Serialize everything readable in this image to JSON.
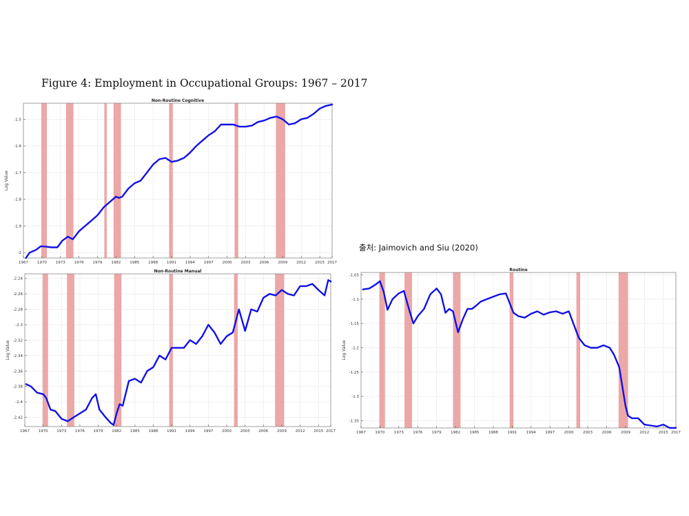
{
  "figure_title": "Figure 4: Employment in Occupational Groups: 1967 – 2017",
  "source": "출처: Jaimovich and Siu (2020)",
  "colors": {
    "line": "#1010e8",
    "recession": "#eca7a7",
    "grid": "#e6e6e6",
    "axis": "#888888"
  },
  "chart_data": [
    {
      "type": "line",
      "title": "Non-Routine Cognitive",
      "xlabel": "",
      "ylabel": "Log Value",
      "xlim": [
        1967,
        2017
      ],
      "ylim": [
        -2.02,
        -1.44
      ],
      "x_ticks": [
        1967,
        1970,
        1973,
        1976,
        1979,
        1982,
        1985,
        1988,
        1991,
        1994,
        1997,
        2000,
        2003,
        2006,
        2009,
        2012,
        2015,
        2017
      ],
      "y_ticks": [
        -2,
        -1.9,
        -1.8,
        -1.7,
        -1.6,
        -1.5
      ],
      "y_tick_labels": [
        "-2",
        "-1.9",
        "-1.8",
        "-1.7",
        "-1.6",
        "-1.5"
      ],
      "grid": true,
      "recessions": [
        [
          1969.9,
          1970.8
        ],
        [
          1973.9,
          1975.1
        ],
        [
          1980.1,
          1980.5
        ],
        [
          1981.6,
          1982.8
        ],
        [
          1990.6,
          1991.2
        ],
        [
          2001.2,
          2001.8
        ],
        [
          2007.9,
          2009.4
        ]
      ],
      "series": [
        {
          "x": [
            1967.4,
            1968,
            1969,
            1969.8,
            1970.5,
            1971.5,
            1972.5,
            1973.3,
            1974.2,
            1975,
            1976,
            1977,
            1978,
            1979,
            1980,
            1981,
            1982,
            1982.5,
            1983,
            1984,
            1985,
            1986,
            1987,
            1988,
            1989,
            1990,
            1991,
            1992,
            1993,
            1994,
            1995,
            1996,
            1997,
            1998,
            1999,
            2000,
            2001,
            2002,
            2003,
            2004,
            2005,
            2006,
            2007,
            2008,
            2009,
            2010,
            2011,
            2012,
            2013,
            2014,
            2015,
            2016,
            2017
          ],
          "y": [
            -2.02,
            -2.0,
            -1.99,
            -1.976,
            -1.977,
            -1.98,
            -1.98,
            -1.955,
            -1.94,
            -1.95,
            -1.92,
            -1.9,
            -1.88,
            -1.86,
            -1.83,
            -1.81,
            -1.79,
            -1.795,
            -1.79,
            -1.76,
            -1.74,
            -1.73,
            -1.7,
            -1.67,
            -1.65,
            -1.645,
            -1.66,
            -1.655,
            -1.645,
            -1.625,
            -1.6,
            -1.58,
            -1.56,
            -1.545,
            -1.52,
            -1.52,
            -1.52,
            -1.528,
            -1.528,
            -1.524,
            -1.51,
            -1.505,
            -1.495,
            -1.49,
            -1.5,
            -1.52,
            -1.515,
            -1.5,
            -1.495,
            -1.48,
            -1.46,
            -1.45,
            -1.445
          ]
        }
      ]
    },
    {
      "type": "line",
      "title": "Non-Routine Manual",
      "xlabel": "",
      "ylabel": "Log Value",
      "xlim": [
        1967,
        2017
      ],
      "ylim": [
        -2.432,
        -2.234
      ],
      "x_ticks": [
        1967,
        1970,
        1973,
        1976,
        1979,
        1982,
        1985,
        1988,
        1991,
        1994,
        1997,
        2000,
        2003,
        2006,
        2009,
        2012,
        2015,
        2017
      ],
      "y_ticks": [
        -2.42,
        -2.4,
        -2.38,
        -2.36,
        -2.34,
        -2.32,
        -2.3,
        -2.28,
        -2.26,
        -2.24
      ],
      "y_tick_labels": [
        "-2.42",
        "-2.4",
        "-2.38",
        "-2.36",
        "-2.34",
        "-2.32",
        "-2.3",
        "-2.28",
        "-2.26",
        "-2.24"
      ],
      "grid": true,
      "recessions": [
        [
          1969.9,
          1970.8
        ],
        [
          1973.9,
          1975.1
        ],
        [
          1981.6,
          1982.8
        ],
        [
          1990.6,
          1991.2
        ],
        [
          2001.2,
          2001.8
        ],
        [
          2007.9,
          2009.4
        ]
      ],
      "series": [
        {
          "x": [
            1967.2,
            1968,
            1969,
            1970,
            1970.5,
            1971.2,
            1972,
            1973,
            1974,
            1975,
            1976,
            1977,
            1978,
            1978.6,
            1979.2,
            1980,
            1981,
            1981.5,
            1982,
            1982.5,
            1983,
            1984,
            1985,
            1986,
            1987,
            1988,
            1989,
            1990,
            1991,
            1992,
            1993,
            1994,
            1995,
            1996,
            1997,
            1998,
            1999,
            2000,
            2001,
            2002,
            2003,
            2004,
            2005,
            2006,
            2007,
            2008,
            2009,
            2010,
            2011,
            2012,
            2013,
            2014,
            2015,
            2016,
            2016.6,
            2017
          ],
          "y": [
            -2.377,
            -2.38,
            -2.388,
            -2.39,
            -2.395,
            -2.41,
            -2.412,
            -2.422,
            -2.425,
            -2.42,
            -2.415,
            -2.41,
            -2.395,
            -2.39,
            -2.41,
            -2.418,
            -2.427,
            -2.43,
            -2.415,
            -2.403,
            -2.405,
            -2.373,
            -2.37,
            -2.375,
            -2.36,
            -2.355,
            -2.34,
            -2.345,
            -2.33,
            -2.33,
            -2.33,
            -2.32,
            -2.325,
            -2.315,
            -2.3,
            -2.31,
            -2.325,
            -2.315,
            -2.31,
            -2.28,
            -2.308,
            -2.28,
            -2.283,
            -2.265,
            -2.26,
            -2.262,
            -2.255,
            -2.26,
            -2.262,
            -2.25,
            -2.25,
            -2.247,
            -2.255,
            -2.262,
            -2.242,
            -2.244
          ]
        }
      ]
    },
    {
      "type": "line",
      "title": "Routine",
      "xlabel": "",
      "ylabel": "Log Value",
      "xlim": [
        1967,
        2017
      ],
      "ylim": [
        -1.365,
        -1.045
      ],
      "x_ticks": [
        1967,
        1970,
        1973,
        1976,
        1979,
        1982,
        1985,
        1988,
        1991,
        1994,
        1997,
        2000,
        2003,
        2006,
        2009,
        2012,
        2015,
        2017
      ],
      "y_ticks": [
        -1.35,
        -1.3,
        -1.25,
        -1.2,
        -1.15,
        -1.1,
        -1.05
      ],
      "y_tick_labels": [
        "-1.35",
        "-1.3",
        "-1.25",
        "-1.2",
        "-1.15",
        "-1.1",
        "-1.05"
      ],
      "grid": true,
      "recessions": [
        [
          1969.9,
          1970.8
        ],
        [
          1973.9,
          1975.1
        ],
        [
          1981.6,
          1982.8
        ],
        [
          1990.6,
          1991.2
        ],
        [
          2001.2,
          2001.8
        ],
        [
          2007.9,
          2009.4
        ]
      ],
      "series": [
        {
          "x": [
            1967.3,
            1968.3,
            1969.3,
            1970,
            1970.6,
            1971.2,
            1972,
            1973,
            1973.8,
            1974.5,
            1975.3,
            1976,
            1977,
            1978,
            1979,
            1979.7,
            1980.4,
            1981,
            1981.6,
            1982.4,
            1983.2,
            1983.9,
            1984.6,
            1985.3,
            1986,
            1987,
            1988,
            1989,
            1990,
            1990.6,
            1991.2,
            1992,
            1993,
            1994,
            1995,
            1996,
            1997,
            1998,
            1999,
            2000,
            2001,
            2001.6,
            2002.5,
            2003.5,
            2004.5,
            2005.5,
            2006.5,
            2007.2,
            2008,
            2008.5,
            2009,
            2009.4,
            2010,
            2011,
            2012,
            2013,
            2014,
            2015,
            2016,
            2017
          ],
          "y": [
            -1.08,
            -1.078,
            -1.07,
            -1.063,
            -1.085,
            -1.122,
            -1.1,
            -1.088,
            -1.083,
            -1.115,
            -1.15,
            -1.135,
            -1.12,
            -1.09,
            -1.078,
            -1.09,
            -1.128,
            -1.12,
            -1.125,
            -1.168,
            -1.14,
            -1.12,
            -1.12,
            -1.113,
            -1.105,
            -1.1,
            -1.095,
            -1.09,
            -1.088,
            -1.108,
            -1.128,
            -1.135,
            -1.138,
            -1.13,
            -1.125,
            -1.132,
            -1.127,
            -1.125,
            -1.13,
            -1.125,
            -1.16,
            -1.18,
            -1.195,
            -1.2,
            -1.2,
            -1.195,
            -1.2,
            -1.215,
            -1.24,
            -1.28,
            -1.32,
            -1.34,
            -1.345,
            -1.345,
            -1.358,
            -1.36,
            -1.362,
            -1.358,
            -1.365,
            -1.365
          ]
        }
      ]
    }
  ]
}
